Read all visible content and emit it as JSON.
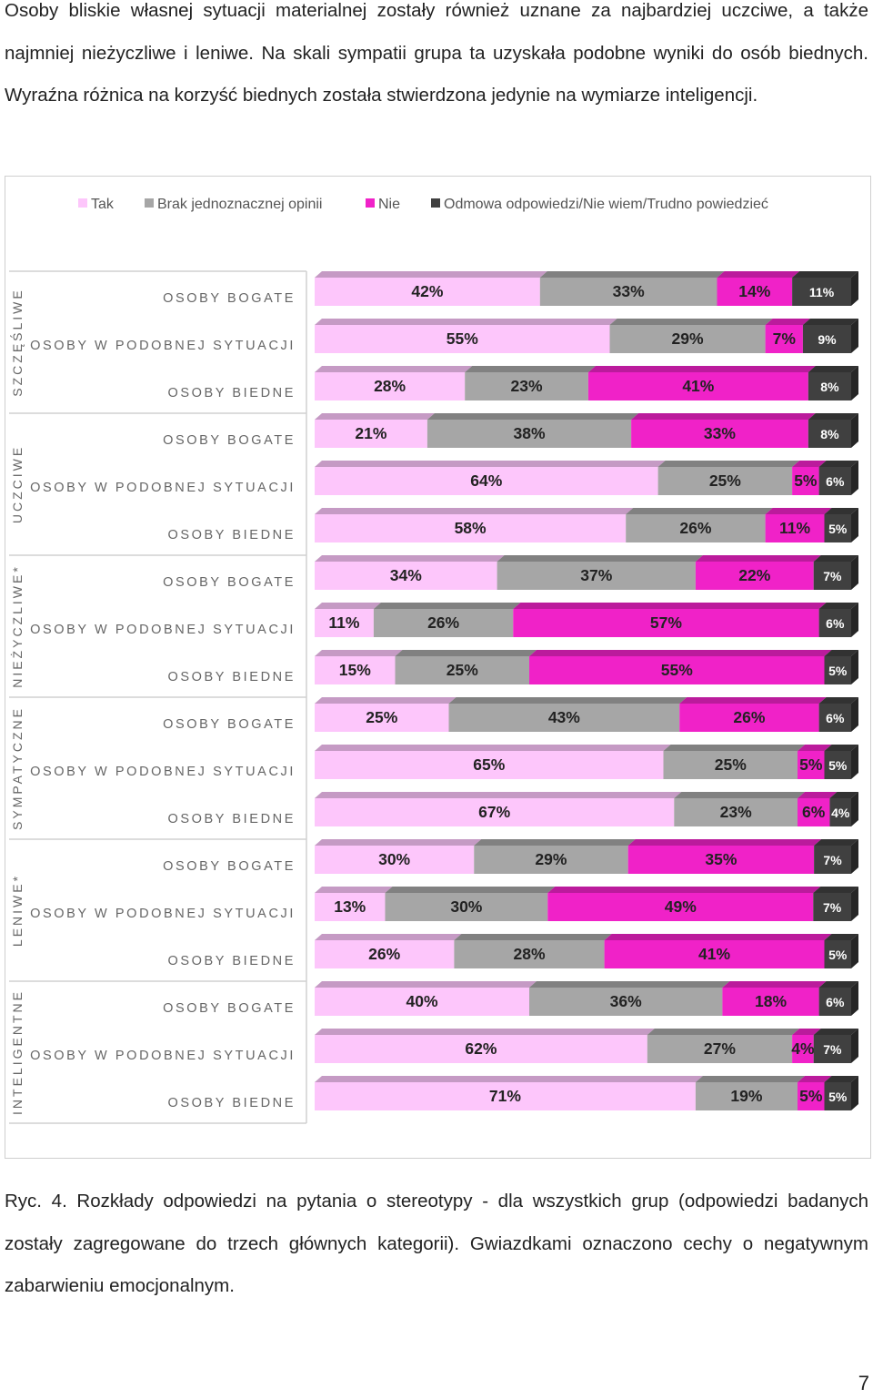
{
  "text": {
    "intro": "Osoby bliskie własnej sytuacji materialnej zostały również uznane za najbardziej uczciwe, a także najmniej nieżyczliwe i leniwe. Na skali sympatii grupa ta uzyskała podobne wyniki do osób biednych. Wyraźna różnica na korzyść biednych została stwierdzona jedynie na wymiarze inteligencji.",
    "caption": "Ryc. 4. Rozkłady odpowiedzi na pytania o stereotypy - dla wszystkich grup (odpowiedzi badanych zostały zagregowane do trzech głównych kategorii). Gwiazdkami oznaczono cechy o negatywnym zabarwieniu emocjonalnym.",
    "page_number": "7"
  },
  "chart_data": {
    "type": "bar",
    "orientation": "horizontal",
    "stacked": true,
    "percent_stacked": true,
    "legend_position": "top",
    "grid": false,
    "series": [
      {
        "name": "Tak",
        "color": "#fdc6fb"
      },
      {
        "name": "Brak jednoznacznej opinii",
        "color": "#a6a6a6"
      },
      {
        "name": "Nie",
        "color": "#f022c8"
      },
      {
        "name": "Odmowa odpowiedzi/Nie wiem/Trudno powiedzieć",
        "color": "#404040"
      }
    ],
    "groups": [
      {
        "label": "SZCZĘŚLIWE",
        "rows": [
          {
            "label": "OSOBY BOGATE",
            "values": [
              42,
              33,
              14,
              11
            ]
          },
          {
            "label": "OSOBY W PODOBNEJ SYTUACJI",
            "values": [
              55,
              29,
              7,
              9
            ]
          },
          {
            "label": "OSOBY BIEDNE",
            "values": [
              28,
              23,
              41,
              8
            ]
          }
        ]
      },
      {
        "label": "UCZCIWE",
        "rows": [
          {
            "label": "OSOBY BOGATE",
            "values": [
              21,
              38,
              33,
              8
            ]
          },
          {
            "label": "OSOBY W PODOBNEJ SYTUACJI",
            "values": [
              64,
              25,
              5,
              6
            ]
          },
          {
            "label": "OSOBY BIEDNE",
            "values": [
              58,
              26,
              11,
              5
            ]
          }
        ]
      },
      {
        "label": "NIEŻYCZLIWE*",
        "rows": [
          {
            "label": "OSOBY BOGATE",
            "values": [
              34,
              37,
              22,
              7
            ]
          },
          {
            "label": "OSOBY W PODOBNEJ SYTUACJI",
            "values": [
              11,
              26,
              57,
              6
            ]
          },
          {
            "label": "OSOBY BIEDNE",
            "values": [
              15,
              25,
              55,
              5
            ]
          }
        ]
      },
      {
        "label": "SYMPATYCZNE",
        "rows": [
          {
            "label": "OSOBY BOGATE",
            "values": [
              25,
              43,
              26,
              6
            ]
          },
          {
            "label": "OSOBY W PODOBNEJ SYTUACJI",
            "values": [
              65,
              25,
              5,
              5
            ]
          },
          {
            "label": "OSOBY BIEDNE",
            "values": [
              67,
              23,
              6,
              4
            ]
          }
        ]
      },
      {
        "label": "LENIWE*",
        "rows": [
          {
            "label": "OSOBY BOGATE",
            "values": [
              30,
              29,
              35,
              7
            ]
          },
          {
            "label": "OSOBY W PODOBNEJ SYTUACJI",
            "values": [
              13,
              30,
              49,
              7
            ]
          },
          {
            "label": "OSOBY BIEDNE",
            "values": [
              26,
              28,
              41,
              5
            ]
          }
        ]
      },
      {
        "label": "INTELIGENTNE",
        "rows": [
          {
            "label": "OSOBY BOGATE",
            "values": [
              40,
              36,
              18,
              6
            ]
          },
          {
            "label": "OSOBY W PODOBNEJ SYTUACJI",
            "values": [
              62,
              27,
              4,
              7
            ]
          },
          {
            "label": "OSOBY BIEDNE",
            "values": [
              71,
              19,
              5,
              5
            ]
          }
        ]
      }
    ]
  }
}
